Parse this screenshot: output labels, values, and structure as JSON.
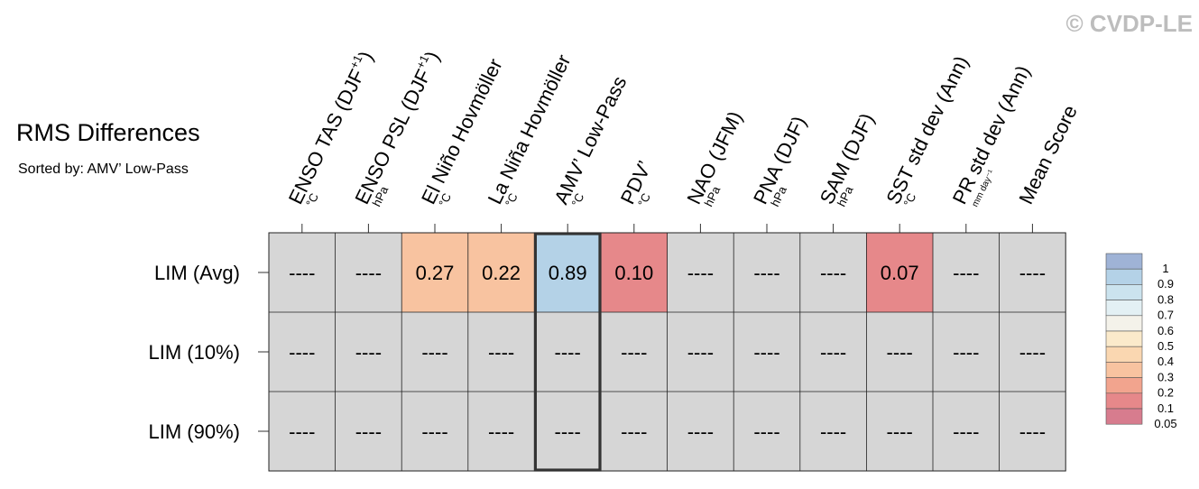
{
  "copyright": "© CVDP-LE",
  "chart_data": {
    "type": "table",
    "title": "RMS Differences",
    "subtitle": "Sorted by: AMV’ Low-Pass",
    "columns": [
      {
        "name": "ENSO TAS (DJF",
        "sup": "+1",
        "close": ")",
        "unit": "°C"
      },
      {
        "name": "ENSO PSL (DJF",
        "sup": "+1",
        "close": ")",
        "unit": "hPa"
      },
      {
        "name": "El Niño Hovmöller",
        "sup": "",
        "close": "",
        "unit": "°C"
      },
      {
        "name": "La Niña Hovmöller",
        "sup": "",
        "close": "",
        "unit": "°C"
      },
      {
        "name": "AMV’ Low-Pass",
        "sup": "",
        "close": "",
        "unit": "°C"
      },
      {
        "name": "PDV’",
        "sup": "",
        "close": "",
        "unit": "°C"
      },
      {
        "name": "NAO (JFM)",
        "sup": "",
        "close": "",
        "unit": "hPa"
      },
      {
        "name": "PNA (DJF)",
        "sup": "",
        "close": "",
        "unit": "hPa"
      },
      {
        "name": "SAM (DJF)",
        "sup": "",
        "close": "",
        "unit": "hPa"
      },
      {
        "name": "SST std dev (Ann)",
        "sup": "",
        "close": "",
        "unit": "°C"
      },
      {
        "name": "PR std dev (Ann)",
        "sup": "",
        "close": "",
        "unit": "mm day⁻¹"
      },
      {
        "name": "Mean Score",
        "sup": "",
        "close": "",
        "unit": ""
      }
    ],
    "rows": [
      {
        "label": "LIM (Avg)",
        "values": [
          null,
          null,
          0.27,
          0.22,
          0.89,
          0.1,
          null,
          null,
          null,
          0.07,
          null,
          null
        ]
      },
      {
        "label": "LIM (10%)",
        "values": [
          null,
          null,
          null,
          null,
          null,
          null,
          null,
          null,
          null,
          null,
          null,
          null
        ]
      },
      {
        "label": "LIM (90%)",
        "values": [
          null,
          null,
          null,
          null,
          null,
          null,
          null,
          null,
          null,
          null,
          null,
          null
        ]
      }
    ],
    "missing_label": "----",
    "highlighted_column": 4,
    "missing_color": "#d6d6d6",
    "colorbar": {
      "levels": [
        1,
        0.9,
        0.8,
        0.7,
        0.6,
        0.5,
        0.4,
        0.3,
        0.2,
        0.1,
        0.05
      ],
      "tick_labels": [
        "1",
        "0.9",
        "0.8",
        "0.7",
        "0.6",
        "0.5",
        "0.4",
        "0.3",
        "0.2",
        "0.1",
        "0.05"
      ],
      "colors": [
        "#9fb3d6",
        "#b4d2e7",
        "#cbe3ee",
        "#e3f0f4",
        "#f4f2ea",
        "#fbeacb",
        "#fad7b1",
        "#f8c3a0",
        "#f2a48e",
        "#e6888a",
        "#d77c8e"
      ]
    }
  }
}
